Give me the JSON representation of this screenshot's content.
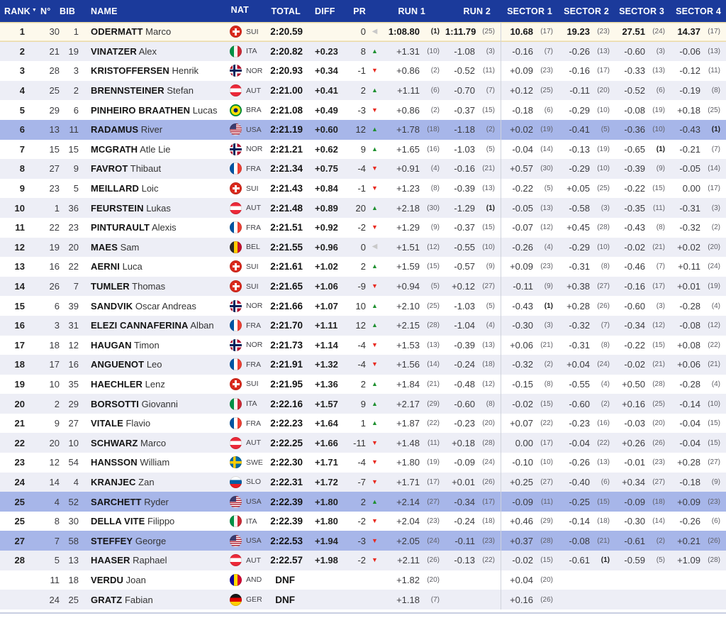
{
  "header": {
    "rank": "RANK",
    "sort_indicator": "▼",
    "n": "N°",
    "bib": "BIB",
    "name": "NAME",
    "nat": "NAT",
    "total": "TOTAL",
    "diff": "DIFF",
    "pr": "PR",
    "run1": "RUN 1",
    "run2": "RUN 2",
    "sector1": "SECTOR 1",
    "sector2": "SECTOR 2",
    "sector3": "SECTOR 3",
    "sector4": "SECTOR 4"
  },
  "icons": {
    "up": "▲",
    "down": "▼",
    "same": "◀"
  },
  "colors": {
    "header_bg": "#1b3a9b",
    "header_fg": "#ffffff",
    "leader_row_bg": "#fdf9ec",
    "leader_row_border": "#ead9a6",
    "alt_row_bg": "#edeef6",
    "usa_row_bg": "#a7b6e9",
    "up_green": "#1f9030",
    "down_red": "#e8291f",
    "same_grey": "#c9c9c9",
    "divider": "#d0d3dc",
    "bottom_border": "#c9cfe2"
  },
  "rows": [
    {
      "rank": "1",
      "n": "30",
      "bib": "1",
      "last": "ODERMATT",
      "first": "Marco",
      "nat": "SUI",
      "total": "2:20.59",
      "diff": "",
      "pr": "0",
      "prdir": "same",
      "shade": "cream",
      "cells": [
        [
          "1:08.80",
          "(1)"
        ],
        [
          "1:11.79",
          "(25)"
        ],
        [
          "10.68",
          "(17)"
        ],
        [
          "19.23",
          "(23)"
        ],
        [
          "27.51",
          "(24)"
        ],
        [
          "14.37",
          "(17)"
        ]
      ]
    },
    {
      "rank": "2",
      "n": "21",
      "bib": "19",
      "last": "VINATZER",
      "first": "Alex",
      "nat": "ITA",
      "total": "2:20.82",
      "diff": "+0.23",
      "pr": "8",
      "prdir": "up",
      "shade": "grey",
      "cells": [
        [
          "+1.31",
          "(10)"
        ],
        [
          "-1.08",
          "(3)"
        ],
        [
          "-0.16",
          "(7)"
        ],
        [
          "-0.26",
          "(13)"
        ],
        [
          "-0.60",
          "(3)"
        ],
        [
          "-0.06",
          "(13)"
        ]
      ]
    },
    {
      "rank": "3",
      "n": "28",
      "bib": "3",
      "last": "KRISTOFFERSEN",
      "first": "Henrik",
      "nat": "NOR",
      "total": "2:20.93",
      "diff": "+0.34",
      "pr": "-1",
      "prdir": "down",
      "shade": "white",
      "cells": [
        [
          "+0.86",
          "(2)"
        ],
        [
          "-0.52",
          "(11)"
        ],
        [
          "+0.09",
          "(23)"
        ],
        [
          "-0.16",
          "(17)"
        ],
        [
          "-0.33",
          "(13)"
        ],
        [
          "-0.12",
          "(11)"
        ]
      ]
    },
    {
      "rank": "4",
      "n": "25",
      "bib": "2",
      "last": "BRENNSTEINER",
      "first": "Stefan",
      "nat": "AUT",
      "total": "2:21.00",
      "diff": "+0.41",
      "pr": "2",
      "prdir": "up",
      "shade": "grey",
      "cells": [
        [
          "+1.11",
          "(6)"
        ],
        [
          "-0.70",
          "(7)"
        ],
        [
          "+0.12",
          "(25)"
        ],
        [
          "-0.11",
          "(20)"
        ],
        [
          "-0.52",
          "(6)"
        ],
        [
          "-0.19",
          "(8)"
        ]
      ]
    },
    {
      "rank": "5",
      "n": "29",
      "bib": "6",
      "last": "PINHEIRO BRAATHEN",
      "first": "Lucas",
      "nat": "BRA",
      "total": "2:21.08",
      "diff": "+0.49",
      "pr": "-3",
      "prdir": "down",
      "shade": "white",
      "cells": [
        [
          "+0.86",
          "(2)"
        ],
        [
          "-0.37",
          "(15)"
        ],
        [
          "-0.18",
          "(6)"
        ],
        [
          "-0.29",
          "(10)"
        ],
        [
          "-0.08",
          "(19)"
        ],
        [
          "+0.18",
          "(25)"
        ]
      ]
    },
    {
      "rank": "6",
      "n": "13",
      "bib": "11",
      "last": "RADAMUS",
      "first": "River",
      "nat": "USA",
      "total": "2:21.19",
      "diff": "+0.60",
      "pr": "12",
      "prdir": "up",
      "shade": "blue",
      "cells": [
        [
          "+1.78",
          "(18)"
        ],
        [
          "-1.18",
          "(2)"
        ],
        [
          "+0.02",
          "(19)"
        ],
        [
          "-0.41",
          "(5)"
        ],
        [
          "-0.36",
          "(10)"
        ],
        [
          "-0.43",
          "(1)"
        ]
      ]
    },
    {
      "rank": "7",
      "n": "15",
      "bib": "15",
      "last": "MCGRATH",
      "first": "Atle Lie",
      "nat": "NOR",
      "total": "2:21.21",
      "diff": "+0.62",
      "pr": "9",
      "prdir": "up",
      "shade": "white",
      "cells": [
        [
          "+1.65",
          "(16)"
        ],
        [
          "-1.03",
          "(5)"
        ],
        [
          "-0.04",
          "(14)"
        ],
        [
          "-0.13",
          "(19)"
        ],
        [
          "-0.65",
          "(1)"
        ],
        [
          "-0.21",
          "(7)"
        ]
      ]
    },
    {
      "rank": "8",
      "n": "27",
      "bib": "9",
      "last": "FAVROT",
      "first": "Thibaut",
      "nat": "FRA",
      "total": "2:21.34",
      "diff": "+0.75",
      "pr": "-4",
      "prdir": "down",
      "shade": "grey",
      "cells": [
        [
          "+0.91",
          "(4)"
        ],
        [
          "-0.16",
          "(21)"
        ],
        [
          "+0.57",
          "(30)"
        ],
        [
          "-0.29",
          "(10)"
        ],
        [
          "-0.39",
          "(9)"
        ],
        [
          "-0.05",
          "(14)"
        ]
      ]
    },
    {
      "rank": "9",
      "n": "23",
      "bib": "5",
      "last": "MEILLARD",
      "first": "Loic",
      "nat": "SUI",
      "total": "2:21.43",
      "diff": "+0.84",
      "pr": "-1",
      "prdir": "down",
      "shade": "white",
      "cells": [
        [
          "+1.23",
          "(8)"
        ],
        [
          "-0.39",
          "(13)"
        ],
        [
          "-0.22",
          "(5)"
        ],
        [
          "+0.05",
          "(25)"
        ],
        [
          "-0.22",
          "(15)"
        ],
        [
          "0.00",
          "(17)"
        ]
      ]
    },
    {
      "rank": "10",
      "n": "1",
      "bib": "36",
      "last": "FEURSTEIN",
      "first": "Lukas",
      "nat": "AUT",
      "total": "2:21.48",
      "diff": "+0.89",
      "pr": "20",
      "prdir": "up",
      "shade": "grey",
      "cells": [
        [
          "+2.18",
          "(30)"
        ],
        [
          "-1.29",
          "(1)"
        ],
        [
          "-0.05",
          "(13)"
        ],
        [
          "-0.58",
          "(3)"
        ],
        [
          "-0.35",
          "(11)"
        ],
        [
          "-0.31",
          "(3)"
        ]
      ]
    },
    {
      "rank": "11",
      "n": "22",
      "bib": "23",
      "last": "PINTURAULT",
      "first": "Alexis",
      "nat": "FRA",
      "total": "2:21.51",
      "diff": "+0.92",
      "pr": "-2",
      "prdir": "down",
      "shade": "white",
      "cells": [
        [
          "+1.29",
          "(9)"
        ],
        [
          "-0.37",
          "(15)"
        ],
        [
          "-0.07",
          "(12)"
        ],
        [
          "+0.45",
          "(28)"
        ],
        [
          "-0.43",
          "(8)"
        ],
        [
          "-0.32",
          "(2)"
        ]
      ]
    },
    {
      "rank": "12",
      "n": "19",
      "bib": "20",
      "last": "MAES",
      "first": "Sam",
      "nat": "BEL",
      "total": "2:21.55",
      "diff": "+0.96",
      "pr": "0",
      "prdir": "same",
      "shade": "grey",
      "cells": [
        [
          "+1.51",
          "(12)"
        ],
        [
          "-0.55",
          "(10)"
        ],
        [
          "-0.26",
          "(4)"
        ],
        [
          "-0.29",
          "(10)"
        ],
        [
          "-0.02",
          "(21)"
        ],
        [
          "+0.02",
          "(20)"
        ]
      ]
    },
    {
      "rank": "13",
      "n": "16",
      "bib": "22",
      "last": "AERNI",
      "first": "Luca",
      "nat": "SUI",
      "total": "2:21.61",
      "diff": "+1.02",
      "pr": "2",
      "prdir": "up",
      "shade": "white",
      "cells": [
        [
          "+1.59",
          "(15)"
        ],
        [
          "-0.57",
          "(9)"
        ],
        [
          "+0.09",
          "(23)"
        ],
        [
          "-0.31",
          "(8)"
        ],
        [
          "-0.46",
          "(7)"
        ],
        [
          "+0.11",
          "(24)"
        ]
      ]
    },
    {
      "rank": "14",
      "n": "26",
      "bib": "7",
      "last": "TUMLER",
      "first": "Thomas",
      "nat": "SUI",
      "total": "2:21.65",
      "diff": "+1.06",
      "pr": "-9",
      "prdir": "down",
      "shade": "grey",
      "cells": [
        [
          "+0.94",
          "(5)"
        ],
        [
          "+0.12",
          "(27)"
        ],
        [
          "-0.11",
          "(9)"
        ],
        [
          "+0.38",
          "(27)"
        ],
        [
          "-0.16",
          "(17)"
        ],
        [
          "+0.01",
          "(19)"
        ]
      ]
    },
    {
      "rank": "15",
      "n": "6",
      "bib": "39",
      "last": "SANDVIK",
      "first": "Oscar Andreas",
      "nat": "NOR",
      "total": "2:21.66",
      "diff": "+1.07",
      "pr": "10",
      "prdir": "up",
      "shade": "white",
      "cells": [
        [
          "+2.10",
          "(25)"
        ],
        [
          "-1.03",
          "(5)"
        ],
        [
          "-0.43",
          "(1)"
        ],
        [
          "+0.28",
          "(26)"
        ],
        [
          "-0.60",
          "(3)"
        ],
        [
          "-0.28",
          "(4)"
        ]
      ]
    },
    {
      "rank": "16",
      "n": "3",
      "bib": "31",
      "last": "ELEZI CANNAFERINA",
      "first": "Alban",
      "nat": "FRA",
      "total": "2:21.70",
      "diff": "+1.11",
      "pr": "12",
      "prdir": "up",
      "shade": "grey",
      "cells": [
        [
          "+2.15",
          "(28)"
        ],
        [
          "-1.04",
          "(4)"
        ],
        [
          "-0.30",
          "(3)"
        ],
        [
          "-0.32",
          "(7)"
        ],
        [
          "-0.34",
          "(12)"
        ],
        [
          "-0.08",
          "(12)"
        ]
      ]
    },
    {
      "rank": "17",
      "n": "18",
      "bib": "12",
      "last": "HAUGAN",
      "first": "Timon",
      "nat": "NOR",
      "total": "2:21.73",
      "diff": "+1.14",
      "pr": "-4",
      "prdir": "down",
      "shade": "white",
      "cells": [
        [
          "+1.53",
          "(13)"
        ],
        [
          "-0.39",
          "(13)"
        ],
        [
          "+0.06",
          "(21)"
        ],
        [
          "-0.31",
          "(8)"
        ],
        [
          "-0.22",
          "(15)"
        ],
        [
          "+0.08",
          "(22)"
        ]
      ]
    },
    {
      "rank": "18",
      "n": "17",
      "bib": "16",
      "last": "ANGUENOT",
      "first": "Leo",
      "nat": "FRA",
      "total": "2:21.91",
      "diff": "+1.32",
      "pr": "-4",
      "prdir": "down",
      "shade": "grey",
      "cells": [
        [
          "+1.56",
          "(14)"
        ],
        [
          "-0.24",
          "(18)"
        ],
        [
          "-0.32",
          "(2)"
        ],
        [
          "+0.04",
          "(24)"
        ],
        [
          "-0.02",
          "(21)"
        ],
        [
          "+0.06",
          "(21)"
        ]
      ]
    },
    {
      "rank": "19",
      "n": "10",
      "bib": "35",
      "last": "HAECHLER",
      "first": "Lenz",
      "nat": "SUI",
      "total": "2:21.95",
      "diff": "+1.36",
      "pr": "2",
      "prdir": "up",
      "shade": "white",
      "cells": [
        [
          "+1.84",
          "(21)"
        ],
        [
          "-0.48",
          "(12)"
        ],
        [
          "-0.15",
          "(8)"
        ],
        [
          "-0.55",
          "(4)"
        ],
        [
          "+0.50",
          "(28)"
        ],
        [
          "-0.28",
          "(4)"
        ]
      ]
    },
    {
      "rank": "20",
      "n": "2",
      "bib": "29",
      "last": "BORSOTTI",
      "first": "Giovanni",
      "nat": "ITA",
      "total": "2:22.16",
      "diff": "+1.57",
      "pr": "9",
      "prdir": "up",
      "shade": "grey",
      "cells": [
        [
          "+2.17",
          "(29)"
        ],
        [
          "-0.60",
          "(8)"
        ],
        [
          "-0.02",
          "(15)"
        ],
        [
          "-0.60",
          "(2)"
        ],
        [
          "+0.16",
          "(25)"
        ],
        [
          "-0.14",
          "(10)"
        ]
      ]
    },
    {
      "rank": "21",
      "n": "9",
      "bib": "27",
      "last": "VITALE",
      "first": "Flavio",
      "nat": "FRA",
      "total": "2:22.23",
      "diff": "+1.64",
      "pr": "1",
      "prdir": "up",
      "shade": "white",
      "cells": [
        [
          "+1.87",
          "(22)"
        ],
        [
          "-0.23",
          "(20)"
        ],
        [
          "+0.07",
          "(22)"
        ],
        [
          "-0.23",
          "(16)"
        ],
        [
          "-0.03",
          "(20)"
        ],
        [
          "-0.04",
          "(15)"
        ]
      ]
    },
    {
      "rank": "22",
      "n": "20",
      "bib": "10",
      "last": "SCHWARZ",
      "first": "Marco",
      "nat": "AUT",
      "total": "2:22.25",
      "diff": "+1.66",
      "pr": "-11",
      "prdir": "down",
      "shade": "grey",
      "cells": [
        [
          "+1.48",
          "(11)"
        ],
        [
          "+0.18",
          "(28)"
        ],
        [
          "0.00",
          "(17)"
        ],
        [
          "-0.04",
          "(22)"
        ],
        [
          "+0.26",
          "(26)"
        ],
        [
          "-0.04",
          "(15)"
        ]
      ]
    },
    {
      "rank": "23",
      "n": "12",
      "bib": "54",
      "last": "HANSSON",
      "first": "William",
      "nat": "SWE",
      "total": "2:22.30",
      "diff": "+1.71",
      "pr": "-4",
      "prdir": "down",
      "shade": "white",
      "cells": [
        [
          "+1.80",
          "(19)"
        ],
        [
          "-0.09",
          "(24)"
        ],
        [
          "-0.10",
          "(10)"
        ],
        [
          "-0.26",
          "(13)"
        ],
        [
          "-0.01",
          "(23)"
        ],
        [
          "+0.28",
          "(27)"
        ]
      ]
    },
    {
      "rank": "24",
      "n": "14",
      "bib": "4",
      "last": "KRANJEC",
      "first": "Zan",
      "nat": "SLO",
      "total": "2:22.31",
      "diff": "+1.72",
      "pr": "-7",
      "prdir": "down",
      "shade": "grey",
      "cells": [
        [
          "+1.71",
          "(17)"
        ],
        [
          "+0.01",
          "(26)"
        ],
        [
          "+0.25",
          "(27)"
        ],
        [
          "-0.40",
          "(6)"
        ],
        [
          "+0.34",
          "(27)"
        ],
        [
          "-0.18",
          "(9)"
        ]
      ]
    },
    {
      "rank": "25",
      "n": "4",
      "bib": "52",
      "last": "SARCHETT",
      "first": "Ryder",
      "nat": "USA",
      "total": "2:22.39",
      "diff": "+1.80",
      "pr": "2",
      "prdir": "up",
      "shade": "blue",
      "cells": [
        [
          "+2.14",
          "(27)"
        ],
        [
          "-0.34",
          "(17)"
        ],
        [
          "-0.09",
          "(11)"
        ],
        [
          "-0.25",
          "(15)"
        ],
        [
          "-0.09",
          "(18)"
        ],
        [
          "+0.09",
          "(23)"
        ]
      ]
    },
    {
      "rank": "25",
      "n": "8",
      "bib": "30",
      "last": "DELLA VITE",
      "first": "Filippo",
      "nat": "ITA",
      "total": "2:22.39",
      "diff": "+1.80",
      "pr": "-2",
      "prdir": "down",
      "shade": "white",
      "cells": [
        [
          "+2.04",
          "(23)"
        ],
        [
          "-0.24",
          "(18)"
        ],
        [
          "+0.46",
          "(29)"
        ],
        [
          "-0.14",
          "(18)"
        ],
        [
          "-0.30",
          "(14)"
        ],
        [
          "-0.26",
          "(6)"
        ]
      ]
    },
    {
      "rank": "27",
      "n": "7",
      "bib": "58",
      "last": "STEFFEY",
      "first": "George",
      "nat": "USA",
      "total": "2:22.53",
      "diff": "+1.94",
      "pr": "-3",
      "prdir": "down",
      "shade": "blue",
      "cells": [
        [
          "+2.05",
          "(24)"
        ],
        [
          "-0.11",
          "(23)"
        ],
        [
          "+0.37",
          "(28)"
        ],
        [
          "-0.08",
          "(21)"
        ],
        [
          "-0.61",
          "(2)"
        ],
        [
          "+0.21",
          "(26)"
        ]
      ]
    },
    {
      "rank": "28",
      "n": "5",
      "bib": "13",
      "last": "HAASER",
      "first": "Raphael",
      "nat": "AUT",
      "total": "2:22.57",
      "diff": "+1.98",
      "pr": "-2",
      "prdir": "down",
      "shade": "grey",
      "cells": [
        [
          "+2.11",
          "(26)"
        ],
        [
          "-0.13",
          "(22)"
        ],
        [
          "-0.02",
          "(15)"
        ],
        [
          "-0.61",
          "(1)"
        ],
        [
          "-0.59",
          "(5)"
        ],
        [
          "+1.09",
          "(28)"
        ]
      ]
    },
    {
      "rank": "",
      "n": "11",
      "bib": "18",
      "last": "VERDU",
      "first": "Joan",
      "nat": "AND",
      "total": "DNF",
      "diff": "",
      "pr": "",
      "prdir": "",
      "shade": "white",
      "cells": [
        [
          "+1.82",
          "(20)"
        ],
        [
          "",
          ""
        ],
        [
          "+0.04",
          "(20)"
        ],
        [
          "",
          ""
        ],
        [
          "",
          ""
        ],
        [
          "",
          ""
        ]
      ]
    },
    {
      "rank": "",
      "n": "24",
      "bib": "25",
      "last": "GRATZ",
      "first": "Fabian",
      "nat": "GER",
      "total": "DNF",
      "diff": "",
      "pr": "",
      "prdir": "",
      "shade": "grey",
      "cells": [
        [
          "+1.18",
          "(7)"
        ],
        [
          "",
          ""
        ],
        [
          "+0.16",
          "(26)"
        ],
        [
          "",
          ""
        ],
        [
          "",
          ""
        ],
        [
          "",
          ""
        ]
      ]
    }
  ]
}
